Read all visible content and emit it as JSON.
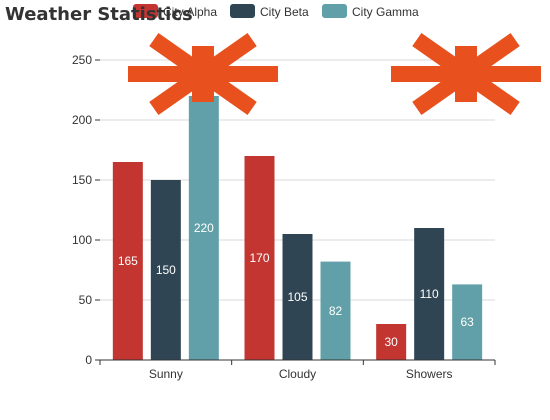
{
  "chart_data": {
    "type": "bar",
    "title": "Weather Statistics",
    "categories": [
      "Sunny",
      "Cloudy",
      "Showers"
    ],
    "series": [
      {
        "name": "City Alpha",
        "color": "#c23531",
        "values": [
          165,
          170,
          30
        ]
      },
      {
        "name": "City Beta",
        "color": "#2f4554",
        "values": [
          150,
          105,
          110
        ]
      },
      {
        "name": "City Gamma",
        "color": "#61a0a8",
        "values": [
          220,
          82,
          63
        ]
      }
    ],
    "yticks": [
      0,
      50,
      100,
      150,
      200,
      250
    ],
    "ylim": [
      0,
      250
    ],
    "grid": true,
    "legend_position": "top",
    "mark_points": [
      {
        "series": "City Gamma",
        "category": "Sunny",
        "value": 220,
        "symbol": "asterisk",
        "color": "#e8501e"
      },
      {
        "series": "City Gamma",
        "category": "Showers",
        "value": 63,
        "symbol": "asterisk",
        "color": "#e8501e"
      }
    ]
  }
}
